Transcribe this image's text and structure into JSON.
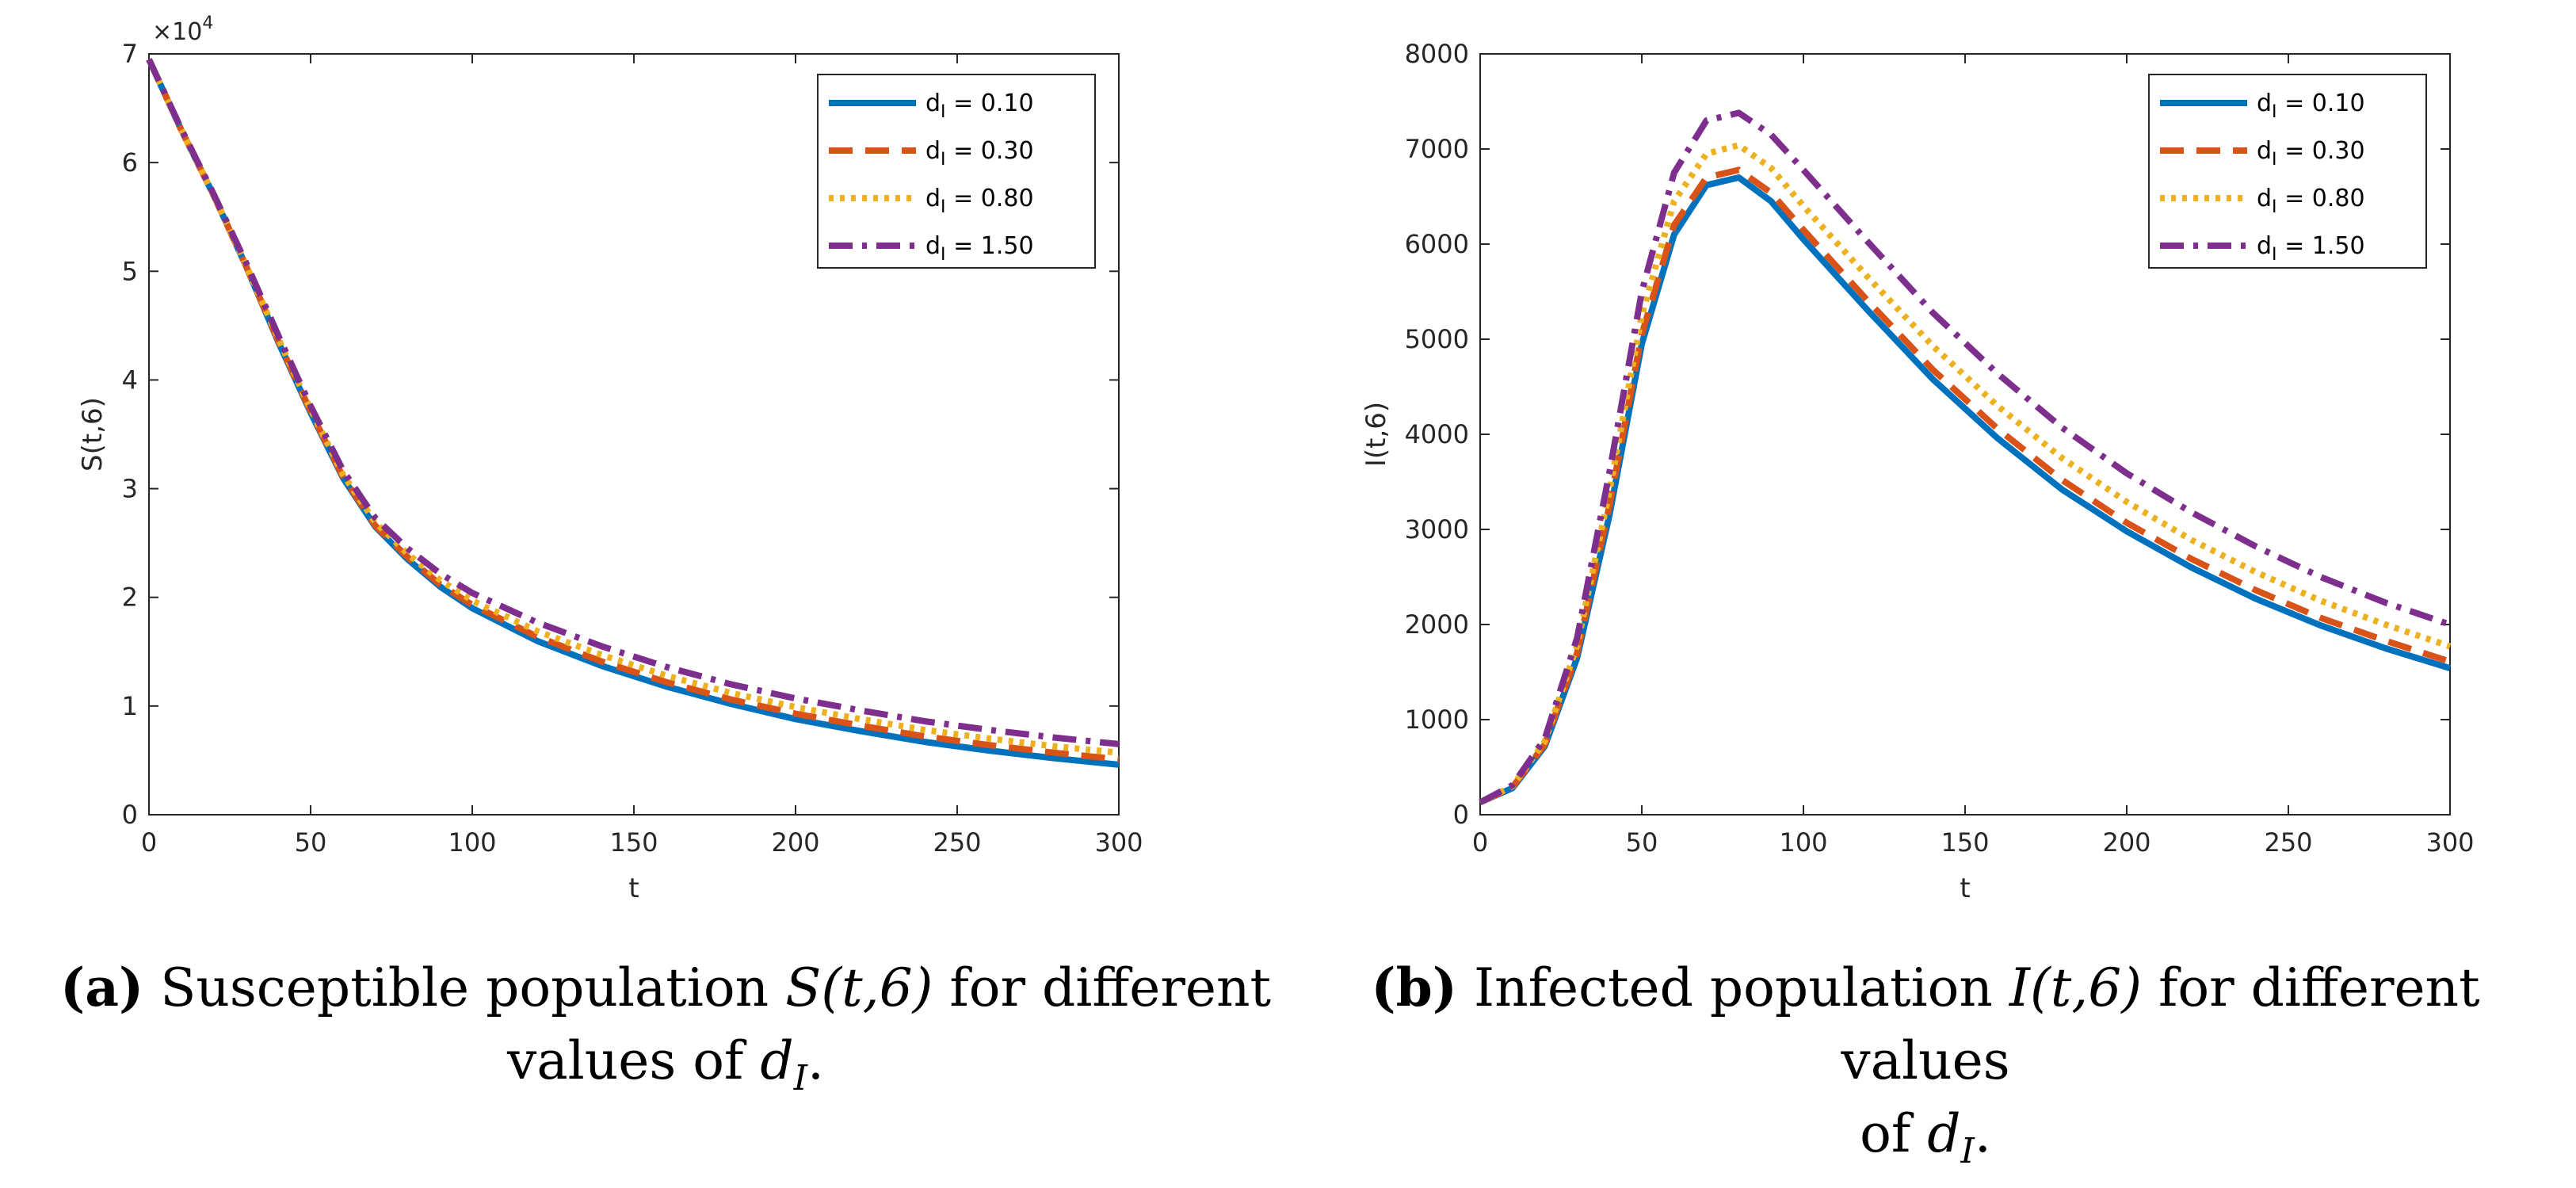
{
  "captions": [
    {
      "label": "(a)",
      "line1": "Susceptible population",
      "math": "S(t,6)",
      "line1_tail": "for different",
      "line2": "values of",
      "math2": "dI",
      "period": "."
    },
    {
      "label": "(b)",
      "line1": "Infected population",
      "math": "I(t,6)",
      "line1_tail": "for different values",
      "line2": "of",
      "math2": "dI",
      "period": "."
    }
  ],
  "chart_data": [
    {
      "type": "line",
      "title": "",
      "xlabel": "t",
      "ylabel": "S(t,6)",
      "xlim": [
        0,
        300
      ],
      "ylim": [
        0,
        70000
      ],
      "xticks": [
        0,
        50,
        100,
        150,
        200,
        250,
        300
      ],
      "yticks": [
        0,
        10000,
        20000,
        30000,
        40000,
        50000,
        60000,
        70000
      ],
      "ytick_labels": [
        "0",
        "1",
        "2",
        "3",
        "4",
        "5",
        "6",
        "7"
      ],
      "y_exponent_label": "×10^4",
      "legend_position": "top-right",
      "x": [
        0,
        10,
        20,
        30,
        40,
        50,
        60,
        70,
        80,
        90,
        100,
        120,
        140,
        160,
        180,
        200,
        220,
        240,
        260,
        280,
        300
      ],
      "series": [
        {
          "name": "dI = 0.10",
          "legend": "d",
          "sub": "I",
          "value_text": " = 0.10",
          "color": "#0072BD",
          "style": "solid",
          "values": [
            69500,
            63000,
            57000,
            50500,
            43500,
            37000,
            31000,
            26500,
            23500,
            21000,
            19000,
            16000,
            13700,
            11800,
            10200,
            8800,
            7700,
            6700,
            5900,
            5200,
            4600
          ]
        },
        {
          "name": "dI = 0.30",
          "legend": "d",
          "sub": "I",
          "value_text": " = 0.30",
          "color": "#D95319",
          "style": "dash",
          "values": [
            69500,
            63000,
            57000,
            50500,
            43600,
            37100,
            31100,
            26600,
            23700,
            21200,
            19300,
            16400,
            14100,
            12200,
            10600,
            9300,
            8200,
            7200,
            6400,
            5700,
            5100
          ]
        },
        {
          "name": "dI = 0.80",
          "legend": "d",
          "sub": "I",
          "value_text": " = 0.80",
          "color": "#EDB120",
          "style": "dot",
          "values": [
            69500,
            63000,
            57000,
            50600,
            43800,
            37300,
            31300,
            26900,
            24000,
            21600,
            19700,
            16900,
            14700,
            12800,
            11200,
            9900,
            8800,
            7800,
            7000,
            6300,
            5700
          ]
        },
        {
          "name": "dI = 1.50",
          "legend": "d",
          "sub": "I",
          "value_text": " = 1.50",
          "color": "#7E2F8E",
          "style": "dashdot",
          "values": [
            69500,
            63100,
            57100,
            50800,
            44100,
            37600,
            31700,
            27300,
            24500,
            22200,
            20400,
            17700,
            15500,
            13600,
            12000,
            10700,
            9600,
            8600,
            7800,
            7100,
            6500
          ]
        }
      ]
    },
    {
      "type": "line",
      "title": "",
      "xlabel": "t",
      "ylabel": "I(t,6)",
      "xlim": [
        0,
        300
      ],
      "ylim": [
        0,
        8000
      ],
      "xticks": [
        0,
        50,
        100,
        150,
        200,
        250,
        300
      ],
      "yticks": [
        0,
        1000,
        2000,
        3000,
        4000,
        5000,
        6000,
        7000,
        8000
      ],
      "ytick_labels": [
        "0",
        "1000",
        "2000",
        "3000",
        "4000",
        "5000",
        "6000",
        "7000",
        "8000"
      ],
      "legend_position": "top-right",
      "x": [
        0,
        10,
        20,
        30,
        40,
        50,
        60,
        70,
        80,
        90,
        100,
        120,
        140,
        160,
        180,
        200,
        220,
        240,
        260,
        280,
        300
      ],
      "series": [
        {
          "name": "dI = 0.10",
          "legend": "d",
          "sub": "I",
          "value_text": " = 0.10",
          "color": "#0072BD",
          "style": "solid",
          "values": [
            130,
            280,
            720,
            1650,
            3150,
            4950,
            6100,
            6620,
            6700,
            6450,
            6050,
            5300,
            4580,
            3960,
            3420,
            2980,
            2600,
            2270,
            1990,
            1750,
            1540
          ]
        },
        {
          "name": "dI = 0.30",
          "legend": "d",
          "sub": "I",
          "value_text": " = 0.30",
          "color": "#D95319",
          "style": "dash",
          "values": [
            130,
            290,
            740,
            1700,
            3250,
            5050,
            6200,
            6700,
            6780,
            6540,
            6150,
            5400,
            4680,
            4060,
            3520,
            3070,
            2690,
            2360,
            2070,
            1830,
            1610
          ]
        },
        {
          "name": "dI = 0.80",
          "legend": "d",
          "sub": "I",
          "value_text": " = 0.80",
          "color": "#EDB120",
          "style": "dot",
          "values": [
            130,
            300,
            770,
            1780,
            3400,
            5250,
            6450,
            6950,
            7040,
            6800,
            6400,
            5650,
            4930,
            4300,
            3750,
            3290,
            2890,
            2550,
            2250,
            2000,
            1770
          ]
        },
        {
          "name": "dI = 1.50",
          "legend": "d",
          "sub": "I",
          "value_text": " = 1.50",
          "color": "#7E2F8E",
          "style": "dashdot",
          "values": [
            130,
            310,
            800,
            1860,
            3600,
            5500,
            6750,
            7300,
            7380,
            7150,
            6780,
            6020,
            5280,
            4640,
            4070,
            3590,
            3180,
            2820,
            2500,
            2230,
            2000
          ]
        }
      ]
    }
  ]
}
